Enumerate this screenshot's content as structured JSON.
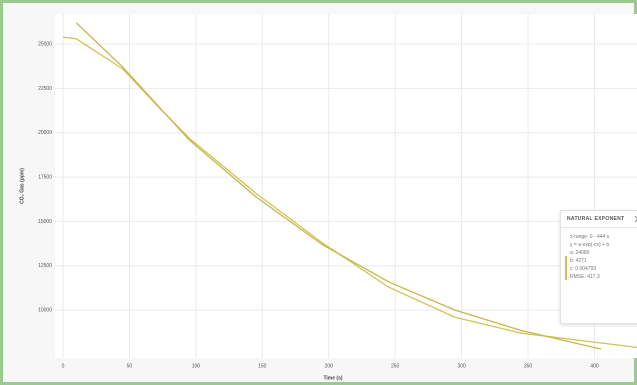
{
  "chart_data": {
    "type": "line",
    "x_label": "Time (s)",
    "y_label": "CO₂ Gas (ppm)",
    "xlim": [
      0,
      432
    ],
    "xticks": [
      0,
      50,
      100,
      150,
      200,
      250,
      300,
      350,
      400
    ],
    "ylim": [
      7300,
      26700
    ],
    "yticks": [
      25000,
      22500,
      20000,
      17500,
      15000,
      12500,
      10000
    ],
    "grid": true,
    "series": [
      {
        "color": "#d0c45a",
        "x": [
          0,
          10,
          45,
          70,
          95,
          145,
          195,
          245,
          295,
          345,
          432
        ],
        "values": [
          25400,
          25300,
          23600,
          21600,
          19700,
          16600,
          13800,
          11300,
          9600,
          8700,
          7900
        ]
      },
      {
        "color": "#c2b84e",
        "x": [
          10,
          45,
          95,
          145,
          195,
          245,
          295,
          345,
          405
        ],
        "values": [
          26200,
          23700,
          19600,
          16400,
          13700,
          11600,
          10000,
          8850,
          7800
        ]
      }
    ]
  },
  "fit_panel": {
    "title": "NATURAL EXPONENT",
    "lines": [
      "x-range: 0 - 444 s",
      "y = a·exp(-cx) + b",
      "a: 24080",
      "b: 4271",
      "c: 0.004793",
      "RMSE: 417.3"
    ]
  }
}
